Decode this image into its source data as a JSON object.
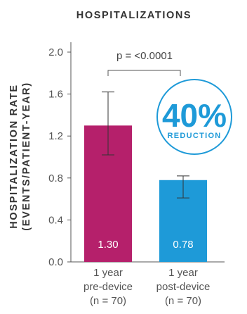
{
  "chart_data": {
    "type": "bar",
    "title": "HOSPITALIZATIONS",
    "ylabel_line1": "HOSPITALIZATION RATE",
    "ylabel_line2": "(EVENTS/PATIENT-YEAR)",
    "xlabel": "",
    "ylim": [
      0,
      2.0
    ],
    "yticks": [
      "0.0",
      "0.4",
      "0.8",
      "1.2",
      "1.6",
      "2.0"
    ],
    "grid": false,
    "categories": [
      [
        "1 year",
        "pre-device",
        "(n = 70)"
      ],
      [
        "1 year",
        "post-device",
        "(n = 70)"
      ]
    ],
    "values": [
      1.3,
      0.78
    ],
    "value_labels": [
      "1.30",
      "0.78"
    ],
    "error_low": [
      1.02,
      0.61
    ],
    "error_high": [
      1.62,
      0.82
    ],
    "colors": [
      "#b5206b",
      "#1e9ad8"
    ],
    "significance": "p = <0.0001",
    "callout": {
      "value": "40%",
      "label": "REDUCTION",
      "color": "#1e9ad8"
    }
  }
}
